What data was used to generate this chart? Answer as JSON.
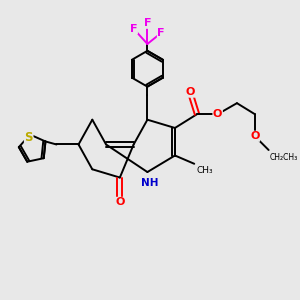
{
  "background_color": "#e8e8e8",
  "bond_color": "#000000",
  "N_color": "#0000cc",
  "O_color": "#ff0000",
  "F_color": "#ee00ee",
  "S_color": "#bbaa00",
  "figsize": [
    3.0,
    3.0
  ],
  "dpi": 100,
  "xlim": [
    0,
    10
  ],
  "ylim": [
    0,
    10
  ]
}
